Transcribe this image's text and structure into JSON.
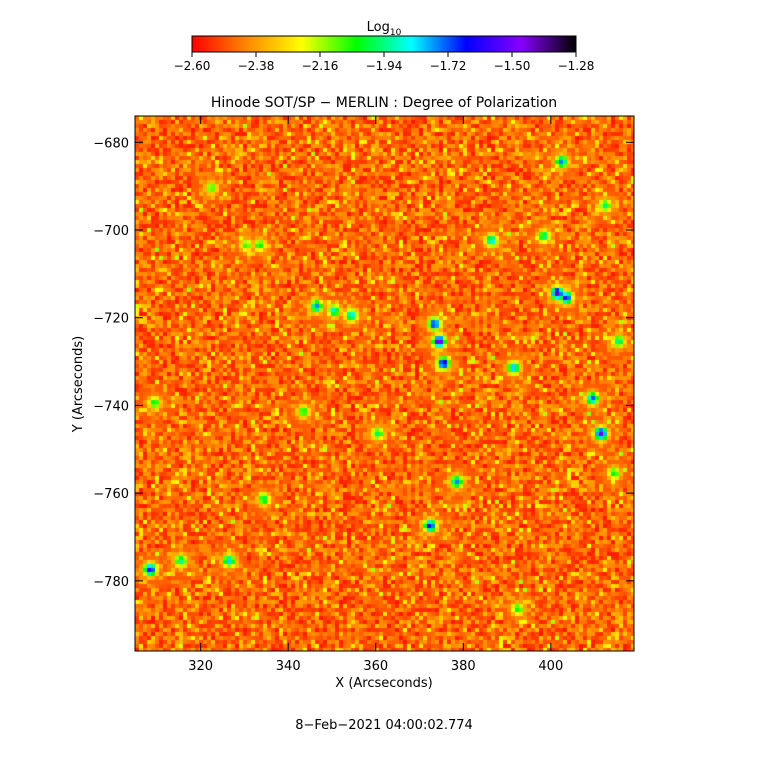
{
  "chart_data": {
    "type": "heatmap",
    "title": "Hinode SOT/SP − MERLIN : Degree of Polarization",
    "xlabel": "X (Arcseconds)",
    "ylabel": "Y (Arcseconds)",
    "timestamp": "8−Feb−2021 04:00:02.774",
    "colorbar": {
      "label_main": "Log",
      "label_sub": "10",
      "range": [
        -2.6,
        -1.28
      ],
      "ticks": [
        "−2.60",
        "−2.38",
        "−2.16",
        "−1.94",
        "−1.72",
        "−1.50",
        "−1.28"
      ],
      "colormap": [
        "#ff0000",
        "#ff8800",
        "#ffff00",
        "#00ff00",
        "#00ffff",
        "#0000ff",
        "#8800ff",
        "#000000"
      ]
    },
    "xlim": [
      305,
      419
    ],
    "ylim": [
      -796,
      -674
    ],
    "xticks": [
      320,
      340,
      360,
      380,
      400
    ],
    "xtick_labels": [
      "320",
      "340",
      "360",
      "380",
      "400"
    ],
    "yticks": [
      -680,
      -700,
      -720,
      -740,
      -760,
      -780
    ],
    "ytick_labels": [
      "−680",
      "−700",
      "−720",
      "−740",
      "−760",
      "−780"
    ],
    "base_level": -2.48,
    "features": [
      {
        "x": 403,
        "y": -715,
        "v": -1.55
      },
      {
        "x": 401,
        "y": -714,
        "v": -1.42
      },
      {
        "x": 374,
        "y": -725,
        "v": -1.4
      },
      {
        "x": 373,
        "y": -721,
        "v": -1.6
      },
      {
        "x": 375,
        "y": -730,
        "v": -1.55
      },
      {
        "x": 411,
        "y": -746,
        "v": -1.45
      },
      {
        "x": 409,
        "y": -738,
        "v": -1.7
      },
      {
        "x": 308,
        "y": -777,
        "v": -1.55
      },
      {
        "x": 346,
        "y": -717,
        "v": -1.75
      },
      {
        "x": 350,
        "y": -718,
        "v": -1.85
      },
      {
        "x": 354,
        "y": -719,
        "v": -1.8
      },
      {
        "x": 372,
        "y": -767,
        "v": -1.6
      },
      {
        "x": 378,
        "y": -757,
        "v": -1.75
      },
      {
        "x": 330,
        "y": -703,
        "v": -2.05
      },
      {
        "x": 333,
        "y": -703,
        "v": -2.0
      },
      {
        "x": 391,
        "y": -731,
        "v": -1.75
      },
      {
        "x": 415,
        "y": -725,
        "v": -1.9
      },
      {
        "x": 334,
        "y": -761,
        "v": -1.95
      },
      {
        "x": 326,
        "y": -775,
        "v": -1.8
      },
      {
        "x": 315,
        "y": -775,
        "v": -1.9
      },
      {
        "x": 402,
        "y": -684,
        "v": -1.75
      },
      {
        "x": 398,
        "y": -701,
        "v": -1.9
      },
      {
        "x": 386,
        "y": -702,
        "v": -1.8
      },
      {
        "x": 412,
        "y": -694,
        "v": -1.95
      },
      {
        "x": 360,
        "y": -746,
        "v": -1.95
      },
      {
        "x": 343,
        "y": -741,
        "v": -2.0
      },
      {
        "x": 309,
        "y": -739,
        "v": -2.0
      },
      {
        "x": 322,
        "y": -690,
        "v": -2.05
      },
      {
        "x": 392,
        "y": -786,
        "v": -2.0
      },
      {
        "x": 414,
        "y": -755,
        "v": -2.0
      }
    ]
  }
}
